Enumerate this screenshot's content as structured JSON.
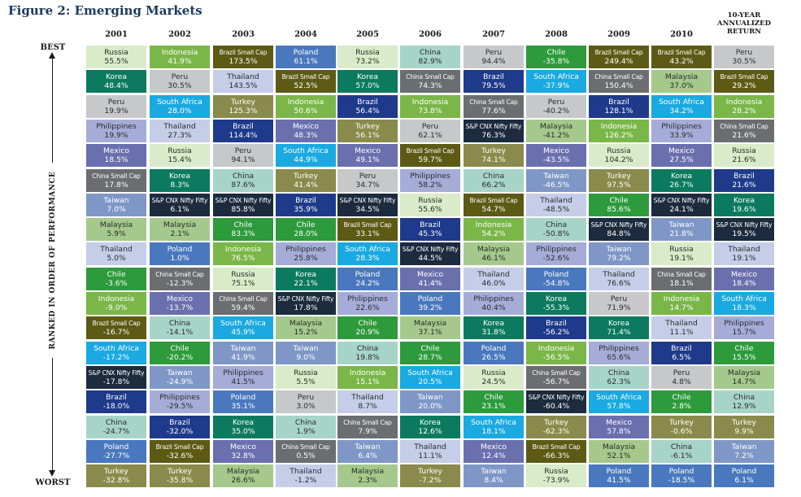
{
  "title": "Figure 2: Emerging Markets",
  "best_label": "BEST",
  "worst_label": "WORST",
  "axis_label": "RANKED IN ORDER OF PERFORMANCE",
  "ten_year_header": [
    "10-YEAR",
    "ANNUALIZED",
    "RETURN"
  ],
  "colors": {
    "Russia": "#d9ebc8",
    "Indonesia": "#7ab648",
    "Brazil Small Cap": "#5c5a14",
    "Poland": "#4a78be",
    "China": "#a7d4c8",
    "Peru": "#c7c8ca",
    "Chile": "#2d9a3c",
    "Korea": "#0b7a5f",
    "South Africa": "#1aa9e0",
    "Thailand": "#c5cde8",
    "Brazil": "#1f3a8a",
    "Turkey": "#8a8a4c",
    "China Small Cap": "#6b6d70",
    "Malaysia": "#a5c98c",
    "S&P CNX Nifty Fifty": "#1c2b3e",
    "Mexico": "#6a6fae",
    "Philippines": "#a6acd8",
    "Taiwan": "#7f97c6"
  },
  "dark_text_markets": [
    "Russia",
    "Peru",
    "Thailand",
    "China",
    "Philippines",
    "Malaysia"
  ],
  "chart_data": {
    "type": "table",
    "title": "Figure 2: Emerging Markets",
    "columns": [
      "2001",
      "2002",
      "2003",
      "2004",
      "2005",
      "2006",
      "2007",
      "2008",
      "2009",
      "2010",
      "10-YEAR ANNUALIZED RETURN"
    ],
    "ranking": "best (top) to worst (bottom)",
    "cells": [
      [
        [
          "Russia",
          "55.5%"
        ],
        [
          "Korea",
          "48.4%"
        ],
        [
          "Peru",
          "19.9%"
        ],
        [
          "Philippines",
          "19.9%"
        ],
        [
          "Mexico",
          "18.5%"
        ],
        [
          "China Small Cap",
          "17.8%"
        ],
        [
          "Taiwan",
          "7.0%"
        ],
        [
          "Malaysia",
          "5.9%"
        ],
        [
          "Thailand",
          "5.0%"
        ],
        [
          "Chile",
          "-3.6%"
        ],
        [
          "Indonesia",
          "-9.0%"
        ],
        [
          "Brazil Small Cap",
          "-16.7%"
        ],
        [
          "South Africa",
          "-17.2%"
        ],
        [
          "S&P CNX Nifty Fifty",
          "-17.8%"
        ],
        [
          "Brazil",
          "-18.0%"
        ],
        [
          "China",
          "-24.7%"
        ],
        [
          "Poland",
          "-27.7%"
        ],
        [
          "Turkey",
          "-32.8%"
        ]
      ],
      [
        [
          "Indonesia",
          "41.9%"
        ],
        [
          "Peru",
          "30.5%"
        ],
        [
          "South Africa",
          "28.0%"
        ],
        [
          "Thailand",
          "27.3%"
        ],
        [
          "Russia",
          "15.4%"
        ],
        [
          "Korea",
          "8.3%"
        ],
        [
          "S&P CNX Nifty Fifty",
          "6.1%"
        ],
        [
          "Malaysia",
          "2.1%"
        ],
        [
          "Poland",
          "1.0%"
        ],
        [
          "China Small Cap",
          "-12.3%"
        ],
        [
          "Mexico",
          "-13.7%"
        ],
        [
          "China",
          "-14.1%"
        ],
        [
          "Chile",
          "-20.2%"
        ],
        [
          "Taiwan",
          "-24.9%"
        ],
        [
          "Philippines",
          "-29.5%"
        ],
        [
          "Brazil",
          "-32.0%"
        ],
        [
          "Brazil Small Cap",
          "-32.6%"
        ],
        [
          "Turkey",
          "-35.8%"
        ]
      ],
      [
        [
          "Brazil Small Cap",
          "173.5%"
        ],
        [
          "Thailand",
          "143.5%"
        ],
        [
          "Turkey",
          "125.3%"
        ],
        [
          "Brazil",
          "114.4%"
        ],
        [
          "Peru",
          "94.1%"
        ],
        [
          "China",
          "87.6%"
        ],
        [
          "S&P CNX Nifty Fifty",
          "85.8%"
        ],
        [
          "Chile",
          "83.3%"
        ],
        [
          "Indonesia",
          "76.5%"
        ],
        [
          "Russia",
          "75.1%"
        ],
        [
          "China Small Cap",
          "59.4%"
        ],
        [
          "South Africa",
          "45.9%"
        ],
        [
          "Taiwan",
          "41.9%"
        ],
        [
          "Philippines",
          "41.5%"
        ],
        [
          "Poland",
          "35.1%"
        ],
        [
          "Korea",
          "35.0%"
        ],
        [
          "Mexico",
          "32.8%"
        ],
        [
          "Malaysia",
          "26.6%"
        ]
      ],
      [
        [
          "Poland",
          "61.1%"
        ],
        [
          "Brazil Small Cap",
          "52.5%"
        ],
        [
          "Indonesia",
          "50.6%"
        ],
        [
          "Mexico",
          "48.3%"
        ],
        [
          "South Africa",
          "44.9%"
        ],
        [
          "Turkey",
          "41.4%"
        ],
        [
          "Brazil",
          "35.9%"
        ],
        [
          "Chile",
          "28.0%"
        ],
        [
          "Philippines",
          "25.8%"
        ],
        [
          "Korea",
          "22.1%"
        ],
        [
          "S&P CNX Nifty Fifty",
          "17.8%"
        ],
        [
          "Malaysia",
          "15.2%"
        ],
        [
          "Taiwan",
          "9.0%"
        ],
        [
          "Russia",
          "5.5%"
        ],
        [
          "Peru",
          "3.0%"
        ],
        [
          "China",
          "1.9%"
        ],
        [
          "China Small Cap",
          "0.5%"
        ],
        [
          "Thailand",
          "-1.2%"
        ]
      ],
      [
        [
          "Russia",
          "73.2%"
        ],
        [
          "Korea",
          "57.0%"
        ],
        [
          "Brazil",
          "56.4%"
        ],
        [
          "Turkey",
          "56.1%"
        ],
        [
          "Mexico",
          "49.1%"
        ],
        [
          "Peru",
          "34.7%"
        ],
        [
          "S&P CNX Nifty Fifty",
          "34.5%"
        ],
        [
          "Brazil Small Cap",
          "33.1%"
        ],
        [
          "South Africa",
          "28.3%"
        ],
        [
          "Poland",
          "24.2%"
        ],
        [
          "Philippines",
          "22.6%"
        ],
        [
          "Chile",
          "20.9%"
        ],
        [
          "China",
          "19.8%"
        ],
        [
          "Indonesia",
          "15.1%"
        ],
        [
          "Thailand",
          "8.7%"
        ],
        [
          "China Small Cap",
          "7.9%"
        ],
        [
          "Taiwan",
          "6.4%"
        ],
        [
          "Malaysia",
          "2.3%"
        ]
      ],
      [
        [
          "China",
          "82.9%"
        ],
        [
          "China Small Cap",
          "74.3%"
        ],
        [
          "Indonesia",
          "73.8%"
        ],
        [
          "Peru",
          "62.1%"
        ],
        [
          "Brazil Small Cap",
          "59.7%"
        ],
        [
          "Philippines",
          "58.2%"
        ],
        [
          "Russia",
          "55.6%"
        ],
        [
          "Brazil",
          "45.3%"
        ],
        [
          "S&P CNX Nifty Fifty",
          "44.5%"
        ],
        [
          "Mexico",
          "41.4%"
        ],
        [
          "Poland",
          "39.2%"
        ],
        [
          "Malaysia",
          "37.1%"
        ],
        [
          "Chile",
          "28.7%"
        ],
        [
          "South Africa",
          "20.5%"
        ],
        [
          "Taiwan",
          "20.0%"
        ],
        [
          "Korea",
          "12.6%"
        ],
        [
          "Thailand",
          "11.1%"
        ],
        [
          "Turkey",
          "-7.2%"
        ]
      ],
      [
        [
          "Peru",
          "94.4%"
        ],
        [
          "Brazil",
          "79.5%"
        ],
        [
          "China Small Cap",
          "77.6%"
        ],
        [
          "S&P CNX Nifty Fifty",
          "76.3%"
        ],
        [
          "Turkey",
          "74.1%"
        ],
        [
          "China",
          "66.2%"
        ],
        [
          "Brazil Small Cap",
          "54.7%"
        ],
        [
          "Indonesia",
          "54.2%"
        ],
        [
          "Malaysia",
          "46.1%"
        ],
        [
          "Thailand",
          "46.0%"
        ],
        [
          "Philippines",
          "40.4%"
        ],
        [
          "Korea",
          "31.8%"
        ],
        [
          "Poland",
          "26.5%"
        ],
        [
          "Russia",
          "24.5%"
        ],
        [
          "Chile",
          "23.1%"
        ],
        [
          "South Africa",
          "18.1%"
        ],
        [
          "Mexico",
          "12.4%"
        ],
        [
          "Taiwan",
          "8.4%"
        ]
      ],
      [
        [
          "Chile",
          "-35.8%"
        ],
        [
          "South Africa",
          "-37.9%"
        ],
        [
          "Peru",
          "-40.2%"
        ],
        [
          "Malaysia",
          "-41.2%"
        ],
        [
          "Mexico",
          "-43.5%"
        ],
        [
          "Taiwan",
          "-46.5%"
        ],
        [
          "Thailand",
          "-48.5%"
        ],
        [
          "China",
          "-50.8%"
        ],
        [
          "Philippines",
          "-52.6%"
        ],
        [
          "Poland",
          "-54.8%"
        ],
        [
          "Korea",
          "-55.3%"
        ],
        [
          "Brazil",
          "-56.2%"
        ],
        [
          "Indonesia",
          "-56.5%"
        ],
        [
          "China Small Cap",
          "-56.7%"
        ],
        [
          "S&P CNX Nifty Fifty",
          "-60.4%"
        ],
        [
          "Turkey",
          "-62.3%"
        ],
        [
          "Brazil Small Cap",
          "-66.3%"
        ],
        [
          "Russia",
          "-73.9%"
        ]
      ],
      [
        [
          "Brazil Small Cap",
          "249.4%"
        ],
        [
          "China Small Cap",
          "150.4%"
        ],
        [
          "Brazil",
          "128.1%"
        ],
        [
          "Indonesia",
          "126.2%"
        ],
        [
          "Russia",
          "104.2%"
        ],
        [
          "Turkey",
          "97.5%"
        ],
        [
          "Chile",
          "85.6%"
        ],
        [
          "S&P CNX Nifty Fifty",
          "84.8%"
        ],
        [
          "Taiwan",
          "79.2%"
        ],
        [
          "Thailand",
          "76.6%"
        ],
        [
          "Peru",
          "71.9%"
        ],
        [
          "Korea",
          "71.4%"
        ],
        [
          "Philippines",
          "65.6%"
        ],
        [
          "China",
          "62.3%"
        ],
        [
          "South Africa",
          "57.8%"
        ],
        [
          "Mexico",
          "57.8%"
        ],
        [
          "Malaysia",
          "52.1%"
        ],
        [
          "Poland",
          "41.5%"
        ]
      ],
      [
        [
          "Brazil Small Cap",
          "43.2%"
        ],
        [
          "Malaysia",
          "37.0%"
        ],
        [
          "South Africa",
          "34.2%"
        ],
        [
          "Philippines",
          "33.9%"
        ],
        [
          "Mexico",
          "27.5%"
        ],
        [
          "Korea",
          "26.7%"
        ],
        [
          "S&P CNX Nifty Fifty",
          "24.1%"
        ],
        [
          "Taiwan",
          "21.8%"
        ],
        [
          "Russia",
          "19.1%"
        ],
        [
          "China Small Cap",
          "18.1%"
        ],
        [
          "Indonesia",
          "14.7%"
        ],
        [
          "Thailand",
          "11.1%"
        ],
        [
          "Brazil",
          "6.5%"
        ],
        [
          "Peru",
          "4.8%"
        ],
        [
          "Chile",
          "2.8%"
        ],
        [
          "Turkey",
          "-0.6%"
        ],
        [
          "China",
          "-6.1%"
        ],
        [
          "Poland",
          "-18.5%"
        ]
      ],
      [
        [
          "Peru",
          "30.5%"
        ],
        [
          "Brazil Small Cap",
          "29.2%"
        ],
        [
          "Indonesia",
          "28.2%"
        ],
        [
          "China Small Cap",
          "21.6%"
        ],
        [
          "Russia",
          "21.6%"
        ],
        [
          "Brazil",
          "21.6%"
        ],
        [
          "Korea",
          "19.6%"
        ],
        [
          "S&P CNX Nifty Fifty",
          "19.5%"
        ],
        [
          "Thailand",
          "19.1%"
        ],
        [
          "Mexico",
          "18.4%"
        ],
        [
          "South Africa",
          "18.3%"
        ],
        [
          "Philippines",
          "15.7%"
        ],
        [
          "Chile",
          "15.5%"
        ],
        [
          "Malaysia",
          "14.7%"
        ],
        [
          "China",
          "12.9%"
        ],
        [
          "Turkey",
          "9.9%"
        ],
        [
          "Taiwan",
          "7.2%"
        ],
        [
          "Poland",
          "6.1%"
        ]
      ]
    ]
  }
}
